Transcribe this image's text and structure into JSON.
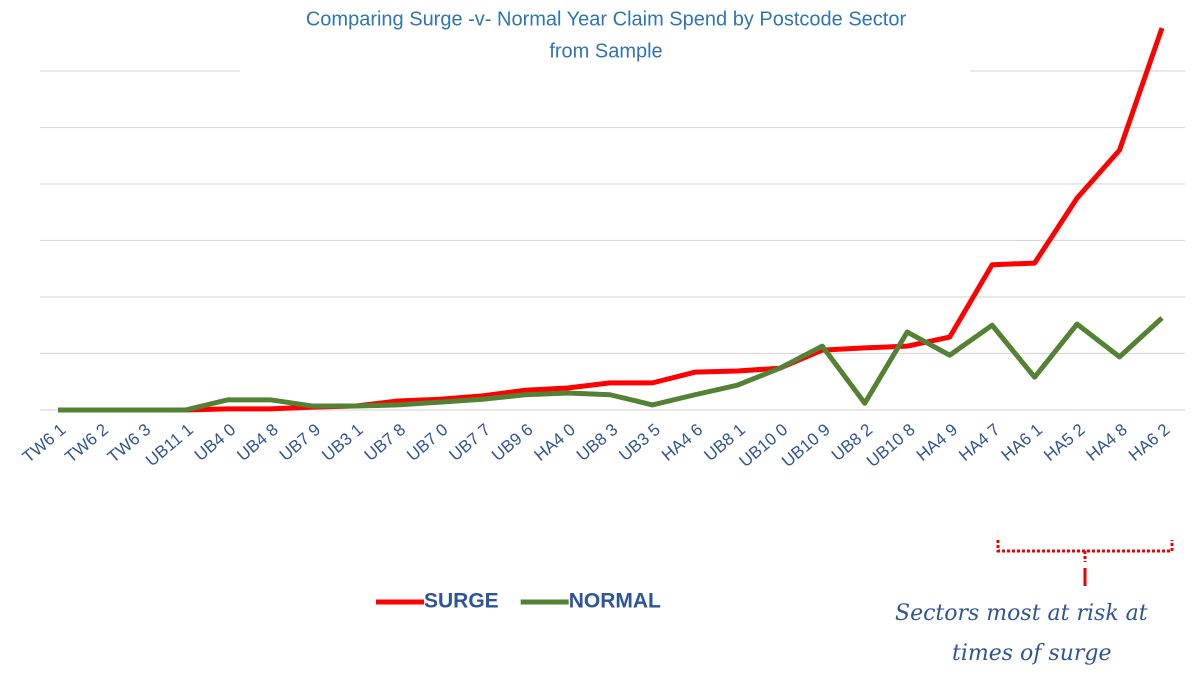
{
  "chart_data": {
    "type": "line",
    "title": [
      "Comparing Surge -v- Normal Year Claim Spend by Postcode Sector",
      "from Sample"
    ],
    "categories": [
      "TW6 1",
      "TW6 2",
      "TW6 3",
      "UB11 1",
      "UB4 0",
      "UB4 8",
      "UB7 9",
      "UB3 1",
      "UB7 8",
      "UB7 0",
      "UB7 7",
      "UB9 6",
      "HA4 0",
      "UB8 3",
      "UB3 5",
      "HA4 6",
      "UB8 1",
      "UB10 0",
      "UB10 9",
      "UB8 2",
      "UB10 8",
      "HA4 9",
      "HA4 7",
      "HA6 1",
      "HA5 2",
      "HA4 8",
      "HA6 2"
    ],
    "series": [
      {
        "name": "SURGE",
        "color": "#ff0000",
        "values": [
          0,
          0,
          0,
          0,
          0.02,
          0.02,
          0.05,
          0.07,
          0.16,
          0.19,
          0.25,
          0.35,
          0.39,
          0.48,
          0.48,
          0.67,
          0.69,
          0.74,
          1.06,
          1.1,
          1.13,
          1.29,
          2.57,
          2.6,
          3.75,
          4.6,
          6.76
        ]
      },
      {
        "name": "NORMAL",
        "color": "#548235",
        "values": [
          0,
          0,
          0,
          0,
          0.18,
          0.18,
          0.07,
          0.07,
          0.09,
          0.14,
          0.19,
          0.27,
          0.3,
          0.27,
          0.09,
          0.27,
          0.44,
          0.74,
          1.13,
          0.12,
          1.38,
          0.97,
          1.5,
          0.58,
          1.52,
          0.94,
          1.63
        ]
      }
    ],
    "ylim": [
      0,
      7
    ],
    "yticks": [
      0,
      1,
      2,
      3,
      4,
      5,
      6
    ],
    "grid": true,
    "legend": "bottom",
    "annotation": [
      "Sectors most at risk at",
      "times of surge"
    ]
  }
}
